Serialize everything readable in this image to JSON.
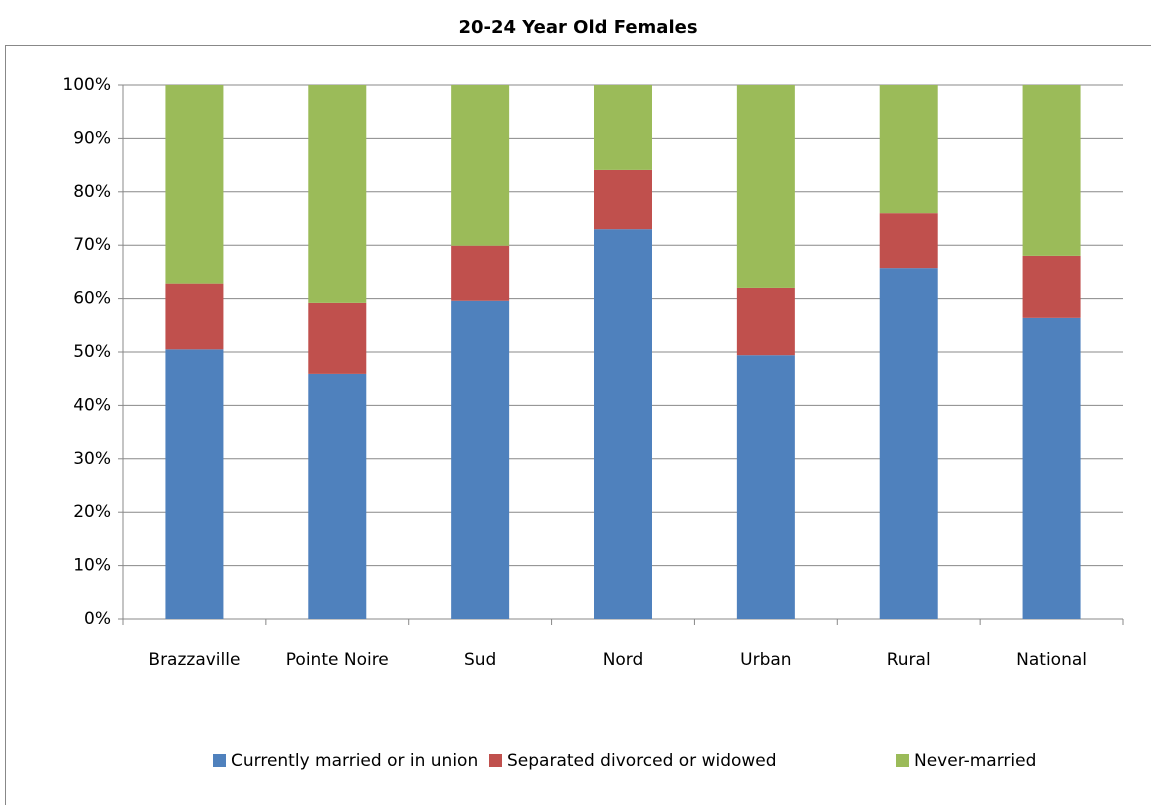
{
  "chart_data": {
    "type": "stacked_bar",
    "title": "20-24 Year Old Females",
    "categories": [
      "Brazzaville",
      "Pointe Noire",
      "Sud",
      "Nord",
      "Urban",
      "Rural",
      "National"
    ],
    "series": [
      {
        "name": "Currently married or in union",
        "color": "#4f81bd",
        "values": [
          50.5,
          45.9,
          59.6,
          73.0,
          49.4,
          65.7,
          56.4
        ]
      },
      {
        "name": "Separated divorced or widowed",
        "color": "#c0504d",
        "values": [
          12.3,
          13.3,
          10.3,
          11.1,
          12.6,
          10.3,
          11.6
        ]
      },
      {
        "name": "Never-married",
        "color": "#9bbb59",
        "values": [
          37.2,
          40.8,
          30.1,
          15.9,
          38.0,
          24.0,
          32.0
        ]
      }
    ],
    "ylim": [
      0,
      100
    ],
    "yticks": [
      {
        "value": 0,
        "label": "0%"
      },
      {
        "value": 10,
        "label": "10%"
      },
      {
        "value": 20,
        "label": "20%"
      },
      {
        "value": 30,
        "label": "30%"
      },
      {
        "value": 40,
        "label": "40%"
      },
      {
        "value": 50,
        "label": "50%"
      },
      {
        "value": 60,
        "label": "60%"
      },
      {
        "value": 70,
        "label": "70%"
      },
      {
        "value": 80,
        "label": "80%"
      },
      {
        "value": 90,
        "label": "90%"
      },
      {
        "value": 100,
        "label": "100%"
      }
    ],
    "grid": true,
    "legend": "bottom"
  }
}
